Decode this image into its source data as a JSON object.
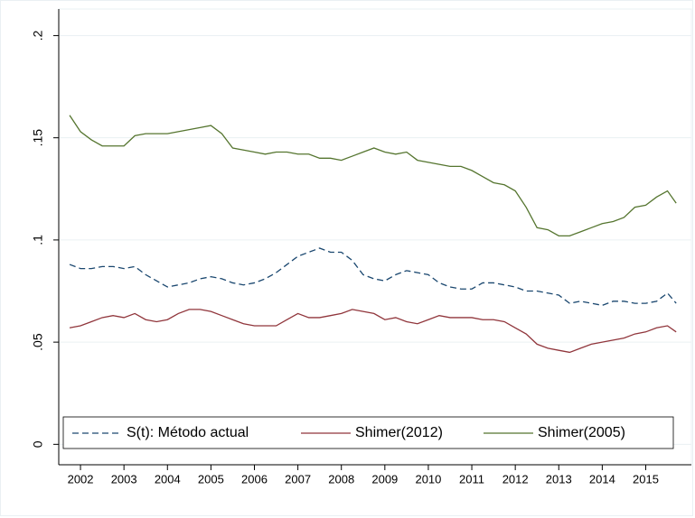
{
  "chart_data": {
    "type": "line",
    "x": [
      2001.75,
      2002,
      2002.25,
      2002.5,
      2002.75,
      2003,
      2003.25,
      2003.5,
      2003.75,
      2004,
      2004.25,
      2004.5,
      2004.75,
      2005,
      2005.25,
      2005.5,
      2005.75,
      2006,
      2006.25,
      2006.5,
      2006.75,
      2007,
      2007.25,
      2007.5,
      2007.75,
      2008,
      2008.25,
      2008.5,
      2008.75,
      2009,
      2009.25,
      2009.5,
      2009.75,
      2010,
      2010.25,
      2010.5,
      2010.75,
      2011,
      2011.25,
      2011.5,
      2011.75,
      2012,
      2012.25,
      2012.5,
      2012.75,
      2013,
      2013.25,
      2013.5,
      2013.75,
      2014,
      2014.25,
      2014.5,
      2014.75,
      2015,
      2015.25,
      2015.5,
      2015.7
    ],
    "series": [
      {
        "name": "S(t): Método actual",
        "color": "#1a476f",
        "dash": true,
        "values": [
          0.088,
          0.086,
          0.086,
          0.087,
          0.087,
          0.086,
          0.087,
          0.083,
          0.08,
          0.077,
          0.078,
          0.079,
          0.081,
          0.082,
          0.081,
          0.079,
          0.078,
          0.079,
          0.081,
          0.084,
          0.088,
          0.092,
          0.094,
          0.096,
          0.094,
          0.094,
          0.09,
          0.083,
          0.081,
          0.08,
          0.083,
          0.085,
          0.084,
          0.083,
          0.079,
          0.077,
          0.076,
          0.076,
          0.079,
          0.079,
          0.078,
          0.077,
          0.075,
          0.075,
          0.074,
          0.073,
          0.069,
          0.07,
          0.069,
          0.068,
          0.07,
          0.07,
          0.069,
          0.069,
          0.07,
          0.074,
          0.069
        ]
      },
      {
        "name": "Shimer(2012)",
        "color": "#90353b",
        "dash": false,
        "values": [
          0.057,
          0.058,
          0.06,
          0.062,
          0.063,
          0.062,
          0.064,
          0.061,
          0.06,
          0.061,
          0.064,
          0.066,
          0.066,
          0.065,
          0.063,
          0.061,
          0.059,
          0.058,
          0.058,
          0.058,
          0.061,
          0.064,
          0.062,
          0.062,
          0.063,
          0.064,
          0.066,
          0.065,
          0.064,
          0.061,
          0.062,
          0.06,
          0.059,
          0.061,
          0.063,
          0.062,
          0.062,
          0.062,
          0.061,
          0.061,
          0.06,
          0.057,
          0.054,
          0.049,
          0.047,
          0.046,
          0.045,
          0.047,
          0.049,
          0.05,
          0.051,
          0.052,
          0.054,
          0.055,
          0.057,
          0.058,
          0.055
        ]
      },
      {
        "name": "Shimer(2005)",
        "color": "#55752f",
        "dash": false,
        "values": [
          0.161,
          0.153,
          0.149,
          0.146,
          0.146,
          0.146,
          0.151,
          0.152,
          0.152,
          0.152,
          0.153,
          0.154,
          0.155,
          0.156,
          0.152,
          0.145,
          0.144,
          0.143,
          0.142,
          0.143,
          0.143,
          0.142,
          0.142,
          0.14,
          0.14,
          0.139,
          0.141,
          0.143,
          0.145,
          0.143,
          0.142,
          0.143,
          0.139,
          0.138,
          0.137,
          0.136,
          0.136,
          0.134,
          0.131,
          0.128,
          0.127,
          0.124,
          0.116,
          0.106,
          0.105,
          0.102,
          0.102,
          0.104,
          0.106,
          0.108,
          0.109,
          0.111,
          0.116,
          0.117,
          0.121,
          0.124,
          0.118
        ]
      }
    ],
    "xlim": [
      2001.5,
      2016.05
    ],
    "xticks": [
      2002,
      2003,
      2004,
      2005,
      2006,
      2007,
      2008,
      2009,
      2010,
      2011,
      2012,
      2013,
      2014,
      2015
    ],
    "ylim": [
      -0.01,
      0.213
    ],
    "yticks": [
      0,
      {
        "value": 0.05,
        "label": ".05"
      },
      {
        "value": 0.1,
        "label": ".1"
      },
      {
        "value": 0.15,
        "label": ".15"
      },
      {
        "value": 0.2,
        "label": ".2"
      }
    ],
    "grid": true,
    "legend": "bottom"
  }
}
